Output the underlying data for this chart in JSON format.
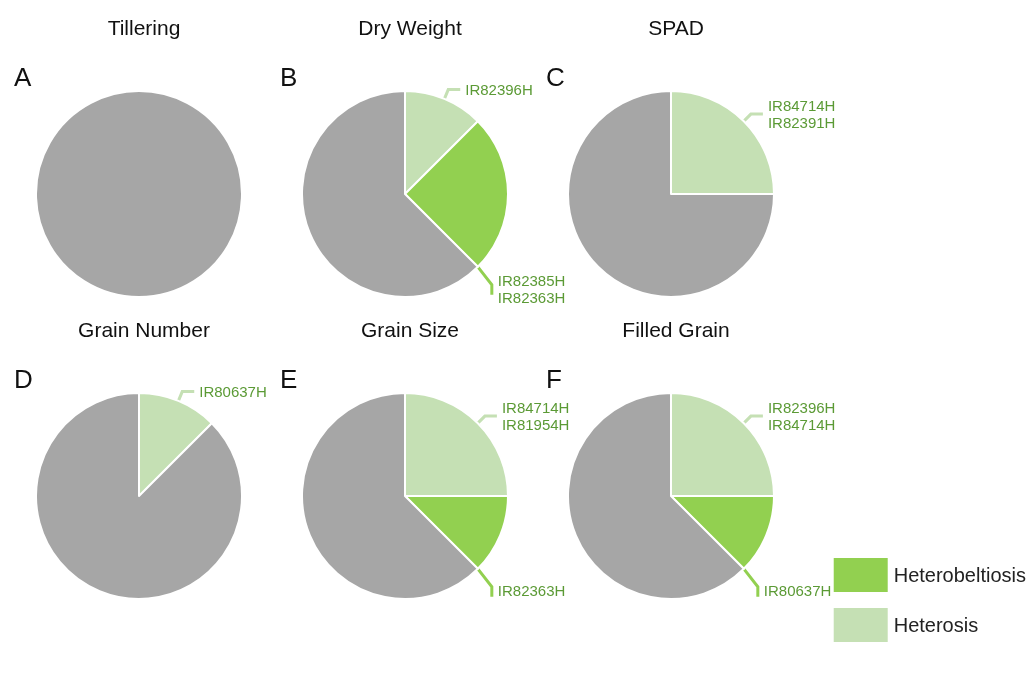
{
  "chart_data": [
    {
      "type": "pie",
      "title": "Tillering",
      "annotations": [
        "A"
      ],
      "categories": [
        null
      ],
      "values": [
        100
      ],
      "colors": [
        "#a6a6a6"
      ]
    },
    {
      "type": "pie",
      "title": "Dry Weight",
      "annotations": [
        "B"
      ],
      "categories": [
        null,
        null,
        null
      ],
      "values": [
        12.5,
        25,
        62.5
      ],
      "colors": [
        "#c5e0b4",
        "#92d050",
        "#a6a6a6"
      ],
      "value_labels": [
        "IR82396H",
        "IR82385H\nIR82363H",
        null
      ]
    },
    {
      "type": "pie",
      "title": "SPAD",
      "annotations": [
        "C"
      ],
      "categories": [
        null,
        null
      ],
      "values": [
        25,
        75
      ],
      "colors": [
        "#c5e0b4",
        "#a6a6a6"
      ],
      "value_labels": [
        "IR84714H\nIR82391H",
        null
      ]
    },
    {
      "type": "pie",
      "title": "Grain Number",
      "annotations": [
        "D"
      ],
      "categories": [
        null,
        null
      ],
      "values": [
        12.5,
        87.5
      ],
      "colors": [
        "#c5e0b4",
        "#a6a6a6"
      ],
      "value_labels": [
        "IR80637H",
        null
      ]
    },
    {
      "type": "pie",
      "title": "Grain Size",
      "annotations": [
        "E"
      ],
      "categories": [
        null,
        null,
        null
      ],
      "values": [
        25,
        12.5,
        62.5
      ],
      "colors": [
        "#c5e0b4",
        "#92d050",
        "#a6a6a6"
      ],
      "value_labels": [
        "IR84714H\nIR81954H",
        "IR82363H",
        null
      ]
    },
    {
      "type": "pie",
      "title": "Filled Grain",
      "annotations": [
        "F"
      ],
      "categories": [
        "Heterosis",
        "Heterobeltiosis",
        null
      ],
      "values": [
        25,
        12.5,
        62.5
      ],
      "colors": [
        "#c5e0b4",
        "#92d050",
        "#a6a6a6"
      ],
      "value_labels": [
        "IR82396H\nIR84714H",
        "IR80637H",
        null
      ],
      "legend": "bottom right"
    }
  ]
}
